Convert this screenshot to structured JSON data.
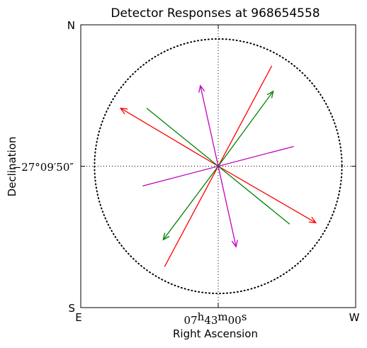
{
  "chart_data": {
    "type": "quiver",
    "title": "Detector Responses at 968654558",
    "xlabel": "Right Ascension",
    "ylabel": "Declination",
    "xlim": [
      -1,
      1
    ],
    "ylim": [
      -1,
      1
    ],
    "grid": true,
    "reference_circle": {
      "center": [
        0,
        0
      ],
      "radius": 0.9,
      "style": "dotted"
    },
    "corner_labels": {
      "top_left": "N",
      "bottom_left": "S",
      "bottom_left_x": "E",
      "bottom_right": "W"
    },
    "x_tick": {
      "value": 0,
      "label_parts": {
        "h": "07",
        "m": "43",
        "s": "00"
      }
    },
    "y_tick": {
      "value": 0,
      "label": "−27°09′50″"
    },
    "vectors": [
      {
        "color": "#ff0000",
        "x0": -0.39,
        "y0": -0.71,
        "x1": 0.39,
        "y1": 0.71,
        "arrowhead": "none"
      },
      {
        "color": "#ff0000",
        "x0": 0.0,
        "y0": 0.0,
        "x1": -0.71,
        "y1": 0.41,
        "arrowhead": "end"
      },
      {
        "color": "#ff0000",
        "x0": 0.0,
        "y0": 0.0,
        "x1": 0.71,
        "y1": -0.4,
        "arrowhead": "end"
      },
      {
        "color": "#008000",
        "x0": -0.52,
        "y0": 0.41,
        "x1": 0.52,
        "y1": -0.41,
        "arrowhead": "none"
      },
      {
        "color": "#008000",
        "x0": 0.0,
        "y0": 0.0,
        "x1": 0.4,
        "y1": 0.53,
        "arrowhead": "end"
      },
      {
        "color": "#008000",
        "x0": 0.0,
        "y0": 0.0,
        "x1": -0.4,
        "y1": -0.52,
        "arrowhead": "end"
      },
      {
        "color": "#c000c0",
        "x0": -0.55,
        "y0": -0.14,
        "x1": 0.55,
        "y1": 0.14,
        "arrowhead": "none"
      },
      {
        "color": "#c000c0",
        "x0": 0.0,
        "y0": 0.0,
        "x1": -0.13,
        "y1": 0.57,
        "arrowhead": "end"
      },
      {
        "color": "#c000c0",
        "x0": 0.0,
        "y0": 0.0,
        "x1": 0.13,
        "y1": -0.57,
        "arrowhead": "end"
      }
    ]
  }
}
